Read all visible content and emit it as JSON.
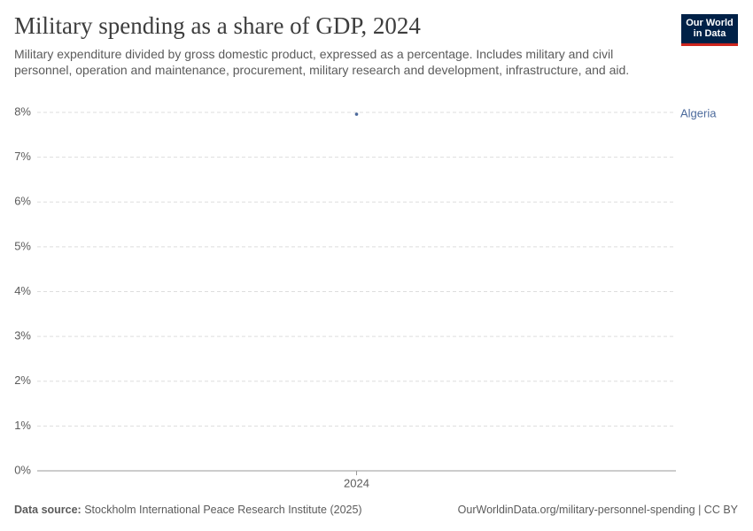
{
  "chart_data": {
    "type": "line",
    "title": "Military spending as a share of GDP, 2024",
    "subtitle": "Military expenditure divided by gross domestic product, expressed as a percentage. Includes military and civil personnel, operation and maintenance, procurement, military research and development, infrastructure, and aid.",
    "logo": [
      "Our World",
      "in Data"
    ],
    "source_label": "Data source:",
    "source": "Stockholm International Peace Research Institute (2025)",
    "footer_right": "OurWorldinData.org/military-personnel-spending | CC BY",
    "x": [
      2024
    ],
    "xticks": [
      2024
    ],
    "series": [
      {
        "name": "Algeria",
        "color": "#4c6a9c",
        "values": [
          7.96
        ]
      }
    ],
    "ylim": [
      0,
      8
    ],
    "yticks": [
      {
        "value": 0,
        "label": "0%"
      },
      {
        "value": 1,
        "label": "1%"
      },
      {
        "value": 2,
        "label": "2%"
      },
      {
        "value": 3,
        "label": "3%"
      },
      {
        "value": 4,
        "label": "4%"
      },
      {
        "value": 5,
        "label": "5%"
      },
      {
        "value": 6,
        "label": "6%"
      },
      {
        "value": 7,
        "label": "7%"
      },
      {
        "value": 8,
        "label": "8%"
      }
    ],
    "grid": true
  }
}
